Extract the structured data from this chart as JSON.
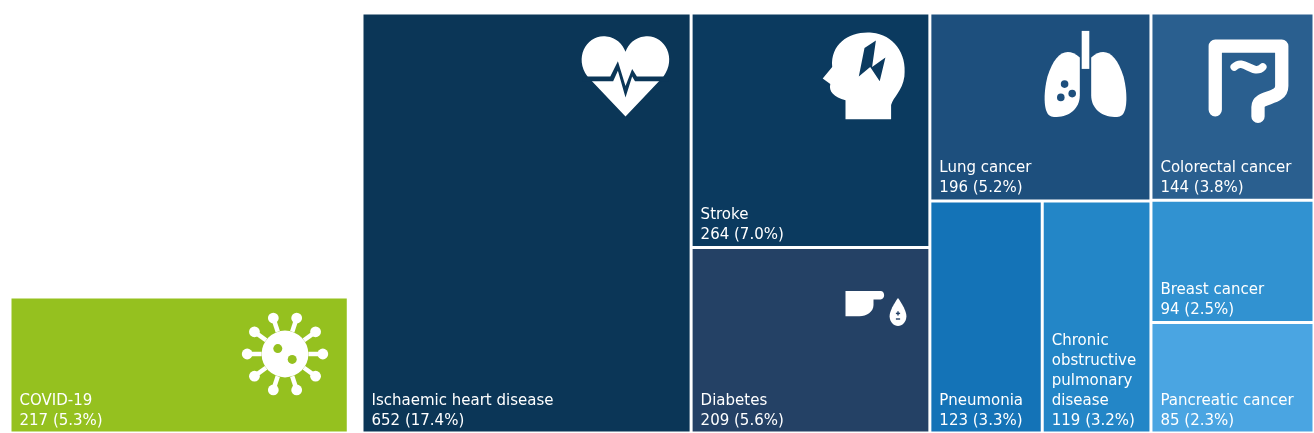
{
  "chart_data": {
    "type": "other",
    "categories": [
      "COVID-19",
      "Ischaemic heart disease",
      "Stroke",
      "Diabetes",
      "Lung cancer",
      "Pneumonia",
      "Chronic obstructive pulmonary disease",
      "Colorectal cancer",
      "Breast cancer",
      "Pancreatic cancer"
    ],
    "values": [
      217,
      652,
      264,
      209,
      196,
      123,
      119,
      144,
      94,
      85
    ],
    "value_labels": [
      "217 (5.3%)",
      "652 (17.4%)",
      "264 (7.0%)",
      "209 (5.6%)",
      "196 (5.2%)",
      "123 (3.3%)",
      "119 (3.2%)",
      "144 (3.8%)",
      "94 (2.5%)",
      "85 (2.3%)"
    ],
    "colors": [
      "#95c11f",
      "#0b3657",
      "#0b3a5f",
      "#244165",
      "#1d4f7d",
      "#1473b7",
      "#2386c7",
      "#2a5f8f",
      "#3192d1",
      "#4aa5e2"
    ]
  }
}
